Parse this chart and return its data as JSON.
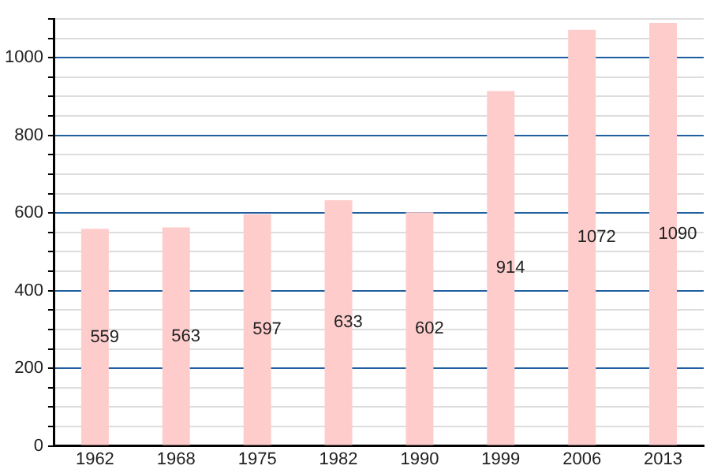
{
  "chart_data": {
    "type": "bar",
    "categories": [
      "1962",
      "1968",
      "1975",
      "1982",
      "1990",
      "1999",
      "2006",
      "2013"
    ],
    "values": [
      559,
      563,
      597,
      633,
      602,
      914,
      1072,
      1090
    ],
    "color": "#ffcccc",
    "data_labels": true,
    "grid": "y",
    "legend": false,
    "ylim": [
      0,
      1100
    ],
    "yticks": [
      0,
      {
        "value": 50,
        "label": null
      },
      {
        "value": 100,
        "label": null
      },
      {
        "value": 150,
        "label": null
      },
      200,
      {
        "value": 250,
        "label": null
      },
      {
        "value": 300,
        "label": null
      },
      {
        "value": 350,
        "label": null
      },
      400,
      {
        "value": 450,
        "label": null
      },
      {
        "value": 500,
        "label": null
      },
      {
        "value": 550,
        "label": null
      },
      600,
      {
        "value": 650,
        "label": null
      },
      {
        "value": 700,
        "label": null
      },
      {
        "value": 750,
        "label": null
      },
      800,
      {
        "value": 850,
        "label": null
      },
      {
        "value": 900,
        "label": null
      },
      {
        "value": 950,
        "label": null
      },
      1000,
      {
        "value": 1050,
        "label": null
      },
      {
        "value": 1100,
        "label": null
      }
    ]
  }
}
